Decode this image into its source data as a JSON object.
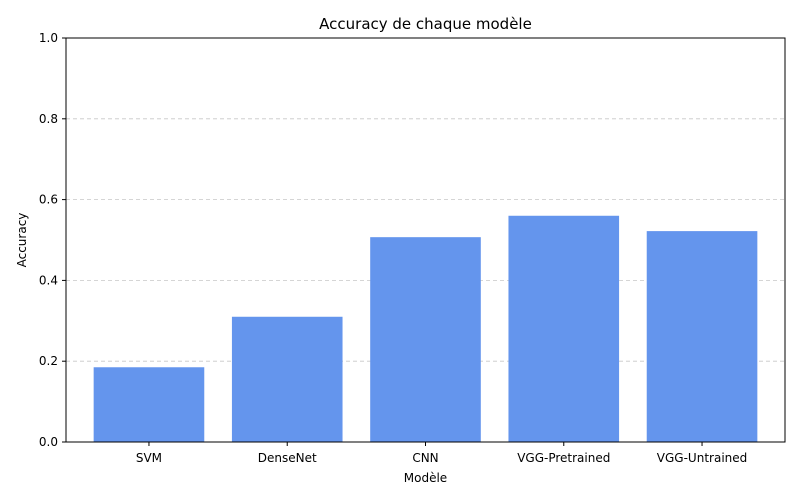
{
  "chart_data": {
    "type": "bar",
    "title": "Accuracy de chaque modèle",
    "xlabel": "Modèle",
    "ylabel": "Accuracy",
    "categories": [
      "SVM",
      "DenseNet",
      "CNN",
      "VGG-Pretrained",
      "VGG-Untrained"
    ],
    "values": [
      0.185,
      0.31,
      0.507,
      0.56,
      0.522
    ],
    "ylim": [
      0,
      1
    ],
    "yticks": [
      "0.0",
      "0.2",
      "0.4",
      "0.6",
      "0.8",
      "1.0"
    ],
    "grid": "y-dashed",
    "bar_color": "#6495ED"
  }
}
